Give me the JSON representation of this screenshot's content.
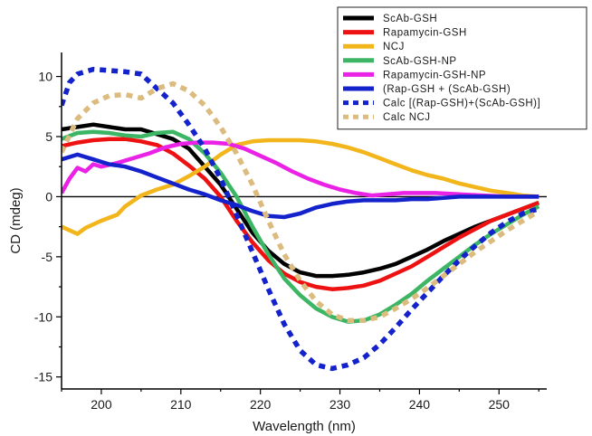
{
  "chart_data": {
    "type": "line",
    "title": "",
    "xlabel": "Wavelength (nm)",
    "ylabel": "CD (mdeg)",
    "xlim": [
      195,
      256
    ],
    "ylim": [
      -16,
      12
    ],
    "xticks": [
      200,
      210,
      220,
      230,
      240,
      250
    ],
    "yticks": [
      10,
      5,
      0,
      -5,
      -10,
      -15
    ],
    "zero_line": true,
    "grid": false,
    "legend_position": "top-right",
    "series": [
      {
        "name": "ScAb-GSH",
        "color": "#000000",
        "style": "solid",
        "points": [
          [
            195,
            5.6
          ],
          [
            197,
            5.8
          ],
          [
            199,
            6.0
          ],
          [
            201,
            5.8
          ],
          [
            203,
            5.6
          ],
          [
            205,
            5.6
          ],
          [
            207,
            5.2
          ],
          [
            209,
            4.8
          ],
          [
            211,
            4.0
          ],
          [
            213,
            2.5
          ],
          [
            215,
            1.0
          ],
          [
            217,
            -1.0
          ],
          [
            219,
            -3.0
          ],
          [
            221,
            -4.5
          ],
          [
            223,
            -5.6
          ],
          [
            225,
            -6.3
          ],
          [
            227,
            -6.6
          ],
          [
            229,
            -6.6
          ],
          [
            231,
            -6.5
          ],
          [
            233,
            -6.3
          ],
          [
            235,
            -6.0
          ],
          [
            237,
            -5.6
          ],
          [
            239,
            -5.0
          ],
          [
            241,
            -4.4
          ],
          [
            243,
            -3.7
          ],
          [
            245,
            -3.1
          ],
          [
            247,
            -2.5
          ],
          [
            249,
            -2.0
          ],
          [
            251,
            -1.5
          ],
          [
            253,
            -1.0
          ],
          [
            255,
            -0.5
          ]
        ]
      },
      {
        "name": "Rapamycin-GSH",
        "color": "#ee1111",
        "style": "solid",
        "points": [
          [
            195,
            4.2
          ],
          [
            197,
            4.5
          ],
          [
            199,
            4.7
          ],
          [
            201,
            4.8
          ],
          [
            203,
            4.8
          ],
          [
            205,
            4.6
          ],
          [
            207,
            4.3
          ],
          [
            209,
            3.6
          ],
          [
            211,
            2.6
          ],
          [
            213,
            1.5
          ],
          [
            215,
            0.0
          ],
          [
            217,
            -2.0
          ],
          [
            219,
            -3.8
          ],
          [
            221,
            -5.3
          ],
          [
            223,
            -6.4
          ],
          [
            225,
            -7.1
          ],
          [
            227,
            -7.5
          ],
          [
            229,
            -7.7
          ],
          [
            231,
            -7.6
          ],
          [
            233,
            -7.4
          ],
          [
            235,
            -7.0
          ],
          [
            237,
            -6.4
          ],
          [
            239,
            -5.8
          ],
          [
            241,
            -5.0
          ],
          [
            243,
            -4.2
          ],
          [
            245,
            -3.4
          ],
          [
            247,
            -2.7
          ],
          [
            249,
            -2.0
          ],
          [
            251,
            -1.5
          ],
          [
            253,
            -1.0
          ],
          [
            255,
            -0.5
          ]
        ]
      },
      {
        "name": "NCJ",
        "color": "#f2b61c",
        "style": "solid",
        "points": [
          [
            195,
            -2.5
          ],
          [
            196,
            -2.8
          ],
          [
            197,
            -3.1
          ],
          [
            198,
            -2.6
          ],
          [
            200,
            -2.0
          ],
          [
            202,
            -1.5
          ],
          [
            203,
            -0.8
          ],
          [
            205,
            0.1
          ],
          [
            207,
            0.6
          ],
          [
            209,
            1.0
          ],
          [
            211,
            1.7
          ],
          [
            213,
            2.5
          ],
          [
            215,
            3.5
          ],
          [
            217,
            4.3
          ],
          [
            219,
            4.6
          ],
          [
            221,
            4.7
          ],
          [
            223,
            4.7
          ],
          [
            225,
            4.7
          ],
          [
            227,
            4.6
          ],
          [
            229,
            4.4
          ],
          [
            231,
            4.1
          ],
          [
            233,
            3.7
          ],
          [
            235,
            3.2
          ],
          [
            237,
            2.7
          ],
          [
            239,
            2.2
          ],
          [
            241,
            1.8
          ],
          [
            243,
            1.5
          ],
          [
            245,
            1.1
          ],
          [
            247,
            0.8
          ],
          [
            249,
            0.5
          ],
          [
            251,
            0.3
          ],
          [
            253,
            0.1
          ],
          [
            255,
            0.0
          ]
        ]
      },
      {
        "name": "ScAb-GSH-NP",
        "color": "#3cb664",
        "style": "solid",
        "points": [
          [
            195,
            4.8
          ],
          [
            197,
            5.3
          ],
          [
            199,
            5.4
          ],
          [
            201,
            5.3
          ],
          [
            203,
            5.1
          ],
          [
            205,
            5.0
          ],
          [
            207,
            5.3
          ],
          [
            209,
            5.4
          ],
          [
            211,
            4.8
          ],
          [
            213,
            3.6
          ],
          [
            215,
            2.0
          ],
          [
            217,
            0.0
          ],
          [
            219,
            -2.5
          ],
          [
            221,
            -4.8
          ],
          [
            223,
            -6.8
          ],
          [
            225,
            -8.2
          ],
          [
            227,
            -9.3
          ],
          [
            229,
            -10.0
          ],
          [
            231,
            -10.4
          ],
          [
            233,
            -10.3
          ],
          [
            235,
            -9.8
          ],
          [
            237,
            -9.0
          ],
          [
            239,
            -8.1
          ],
          [
            241,
            -7.0
          ],
          [
            243,
            -6.0
          ],
          [
            245,
            -5.0
          ],
          [
            247,
            -4.0
          ],
          [
            249,
            -3.1
          ],
          [
            251,
            -2.3
          ],
          [
            253,
            -1.5
          ],
          [
            255,
            -0.8
          ]
        ]
      },
      {
        "name": "Rapamycin-GSH-NP",
        "color": "#ea22e6",
        "style": "solid",
        "points": [
          [
            195,
            0.3
          ],
          [
            196,
            1.5
          ],
          [
            197,
            2.4
          ],
          [
            198,
            2.1
          ],
          [
            199,
            2.7
          ],
          [
            200,
            2.5
          ],
          [
            202,
            2.8
          ],
          [
            204,
            3.2
          ],
          [
            206,
            3.6
          ],
          [
            208,
            4.1
          ],
          [
            210,
            4.4
          ],
          [
            212,
            4.5
          ],
          [
            214,
            4.5
          ],
          [
            216,
            4.4
          ],
          [
            218,
            4.0
          ],
          [
            220,
            3.4
          ],
          [
            222,
            2.8
          ],
          [
            224,
            2.1
          ],
          [
            226,
            1.5
          ],
          [
            228,
            1.0
          ],
          [
            230,
            0.6
          ],
          [
            232,
            0.3
          ],
          [
            234,
            0.1
          ],
          [
            236,
            0.2
          ],
          [
            238,
            0.3
          ],
          [
            240,
            0.3
          ],
          [
            242,
            0.3
          ],
          [
            245,
            0.2
          ],
          [
            248,
            0.1
          ],
          [
            251,
            0.0
          ],
          [
            255,
            0.0
          ]
        ]
      },
      {
        "name": "(Rap-GSH + (ScAb-GSH)",
        "color": "#1422cc",
        "style": "solid",
        "points": [
          [
            195,
            3.1
          ],
          [
            197,
            3.5
          ],
          [
            199,
            3.1
          ],
          [
            201,
            2.7
          ],
          [
            203,
            2.5
          ],
          [
            205,
            2.1
          ],
          [
            207,
            1.6
          ],
          [
            209,
            1.1
          ],
          [
            211,
            0.6
          ],
          [
            213,
            0.2
          ],
          [
            215,
            -0.3
          ],
          [
            217,
            -0.7
          ],
          [
            219,
            -1.2
          ],
          [
            221,
            -1.6
          ],
          [
            223,
            -1.7
          ],
          [
            225,
            -1.4
          ],
          [
            227,
            -0.9
          ],
          [
            229,
            -0.6
          ],
          [
            231,
            -0.4
          ],
          [
            233,
            -0.3
          ],
          [
            235,
            -0.3
          ],
          [
            237,
            -0.3
          ],
          [
            239,
            -0.2
          ],
          [
            241,
            -0.2
          ],
          [
            243,
            -0.1
          ],
          [
            245,
            0.0
          ],
          [
            247,
            0.0
          ],
          [
            249,
            0.0
          ],
          [
            251,
            0.0
          ],
          [
            253,
            0.0
          ],
          [
            255,
            0.0
          ]
        ]
      },
      {
        "name": "Calc  [(Rap-GSH)+(ScAb-GSH)]",
        "color": "#1422cc",
        "style": "dotted",
        "points": [
          [
            195,
            7.6
          ],
          [
            196,
            9.5
          ],
          [
            197,
            10.2
          ],
          [
            199,
            10.6
          ],
          [
            201,
            10.5
          ],
          [
            203,
            10.4
          ],
          [
            205,
            10.2
          ],
          [
            207,
            9.0
          ],
          [
            209,
            7.8
          ],
          [
            211,
            6.0
          ],
          [
            213,
            4.0
          ],
          [
            215,
            1.5
          ],
          [
            217,
            -1.5
          ],
          [
            219,
            -4.6
          ],
          [
            221,
            -7.7
          ],
          [
            223,
            -10.6
          ],
          [
            225,
            -12.8
          ],
          [
            227,
            -14.0
          ],
          [
            229,
            -14.3
          ],
          [
            231,
            -14.0
          ],
          [
            233,
            -13.4
          ],
          [
            235,
            -12.3
          ],
          [
            237,
            -10.9
          ],
          [
            239,
            -9.4
          ],
          [
            241,
            -8.0
          ],
          [
            243,
            -6.6
          ],
          [
            245,
            -5.3
          ],
          [
            247,
            -4.1
          ],
          [
            249,
            -3.0
          ],
          [
            251,
            -2.1
          ],
          [
            253,
            -1.4
          ],
          [
            255,
            -1.0
          ]
        ]
      },
      {
        "name": "Calc NCJ",
        "color": "#dcbb7e",
        "style": "dotted",
        "points": [
          [
            195,
            3.7
          ],
          [
            197,
            6.5
          ],
          [
            199,
            7.8
          ],
          [
            201,
            8.4
          ],
          [
            203,
            8.5
          ],
          [
            205,
            8.2
          ],
          [
            207,
            9.0
          ],
          [
            209,
            9.4
          ],
          [
            211,
            8.8
          ],
          [
            213,
            7.6
          ],
          [
            215,
            5.8
          ],
          [
            217,
            3.6
          ],
          [
            219,
            1.0
          ],
          [
            221,
            -2.0
          ],
          [
            223,
            -4.8
          ],
          [
            225,
            -7.0
          ],
          [
            227,
            -8.7
          ],
          [
            229,
            -9.8
          ],
          [
            231,
            -10.3
          ],
          [
            233,
            -10.3
          ],
          [
            235,
            -10.0
          ],
          [
            237,
            -9.3
          ],
          [
            239,
            -8.5
          ],
          [
            241,
            -7.6
          ],
          [
            243,
            -6.6
          ],
          [
            245,
            -5.6
          ],
          [
            247,
            -4.6
          ],
          [
            249,
            -3.7
          ],
          [
            251,
            -2.8
          ],
          [
            253,
            -2.0
          ],
          [
            255,
            -1.2
          ]
        ]
      }
    ]
  }
}
